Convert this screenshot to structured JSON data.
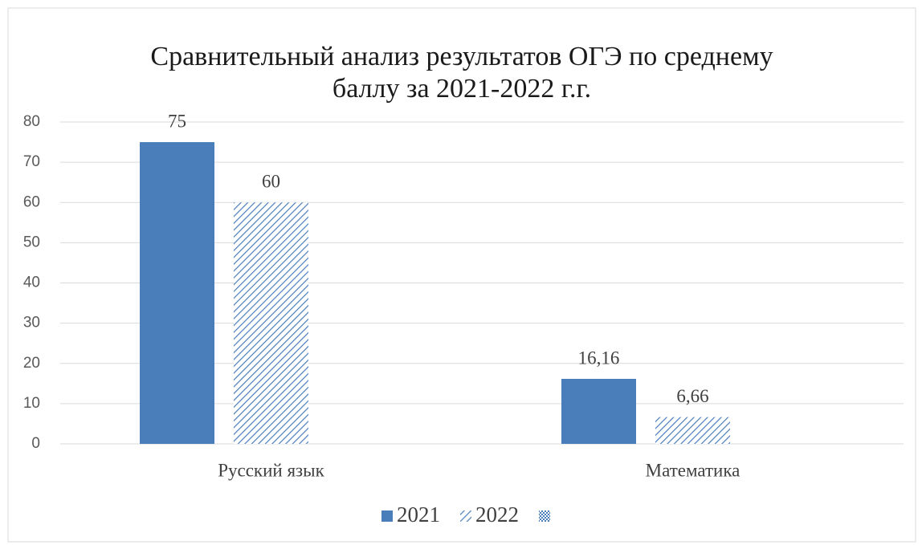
{
  "chart_data": {
    "type": "bar",
    "title": "Сравнительный анализ результатов ОГЭ по среднему",
    "subtitle": "баллу  за 2021-2022 г.г.",
    "categories": [
      "Русский язык",
      "Математика"
    ],
    "series": [
      {
        "name": "2021",
        "color": "#4a7ebb",
        "pattern": "solid",
        "values": [
          75,
          16.16
        ],
        "value_labels": [
          "75",
          "16,16"
        ]
      },
      {
        "name": "2022",
        "color": "#4a7ebb",
        "pattern": "hatch",
        "values": [
          60,
          6.66
        ],
        "value_labels": [
          "60",
          "6,66"
        ]
      },
      {
        "name": null,
        "color": "#4a7ebb",
        "pattern": "checker",
        "values": [
          null,
          null
        ]
      }
    ],
    "ylim": [
      0,
      80
    ],
    "yticks": [
      0,
      10,
      20,
      30,
      40,
      50,
      60,
      70,
      80
    ],
    "grid": true,
    "legend": "bottom"
  }
}
